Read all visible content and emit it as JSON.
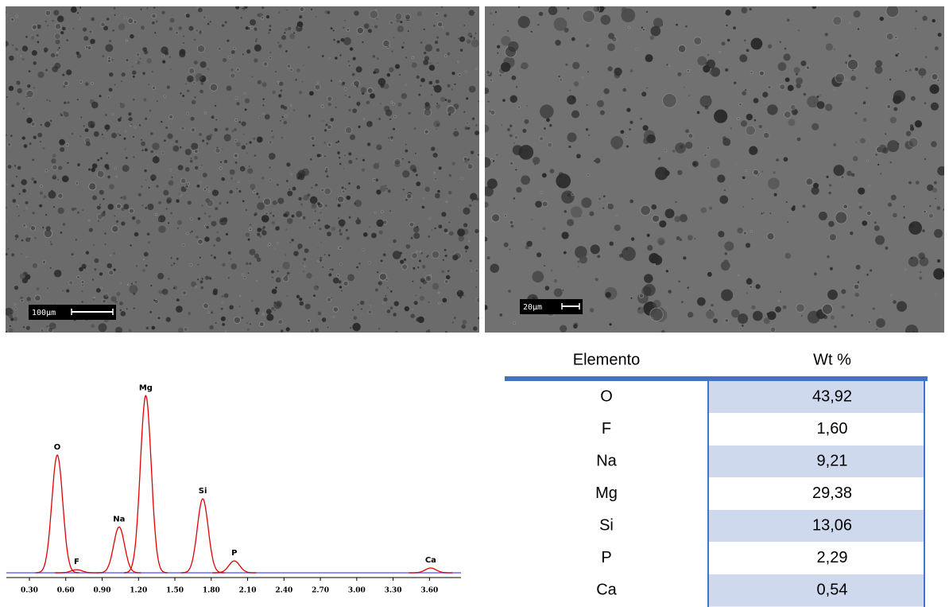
{
  "images": [
    {
      "scale_label": "100µm"
    },
    {
      "scale_label": "20µm"
    }
  ],
  "spectrum": {
    "type": "line",
    "xlim": [
      0.11,
      3.86
    ],
    "ylim": [
      0,
      100
    ],
    "xticks": [
      {
        "value": 0.3,
        "label": "0.30"
      },
      {
        "value": 0.6,
        "label": "0.60"
      },
      {
        "value": 0.9,
        "label": "0.90"
      },
      {
        "value": 1.2,
        "label": "1.20"
      },
      {
        "value": 1.5,
        "label": "1.50"
      },
      {
        "value": 1.8,
        "label": "1.80"
      },
      {
        "value": 2.1,
        "label": "2.10"
      },
      {
        "value": 2.4,
        "label": "2.40"
      },
      {
        "value": 2.7,
        "label": "2.70"
      },
      {
        "value": 3.0,
        "label": "3.00"
      },
      {
        "value": 3.3,
        "label": "3.30"
      },
      {
        "value": 3.6,
        "label": "3.60"
      }
    ],
    "peaks": {
      "labels": [
        "O",
        "F",
        "Na",
        "Mg",
        "Si",
        "P",
        "Ca"
      ],
      "x": [
        0.53,
        0.69,
        1.04,
        1.26,
        1.73,
        1.99,
        3.61
      ],
      "values": [
        56.5,
        1.5,
        22,
        85,
        35.5,
        5.7,
        2.3
      ]
    },
    "color": "#e00000",
    "baseline_color": "#6a6aff"
  },
  "table": {
    "header": [
      "Elemento",
      "Wt %"
    ],
    "rows": [
      [
        "O",
        "43,92"
      ],
      [
        "F",
        "1,60"
      ],
      [
        "Na",
        "9,21"
      ],
      [
        "Mg",
        "29,38"
      ],
      [
        "Si",
        "13,06"
      ],
      [
        "P",
        "2,29"
      ],
      [
        "Ca",
        "0,54"
      ]
    ]
  }
}
